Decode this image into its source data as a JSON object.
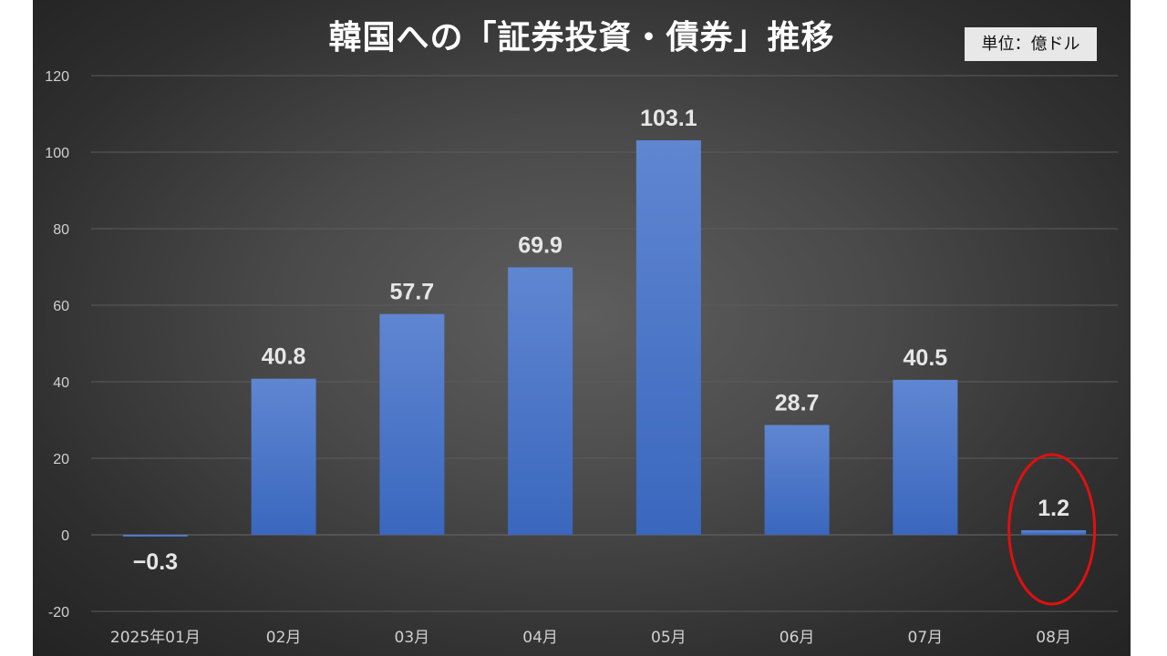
{
  "chart_data": {
    "type": "bar",
    "title": "韓国への「証券投資・債券」推移",
    "unit_label": "単位：億ドル",
    "categories": [
      "2025年01月",
      "02月",
      "03月",
      "04月",
      "05月",
      "06月",
      "07月",
      "08月"
    ],
    "values": [
      -0.3,
      40.8,
      57.7,
      69.9,
      103.1,
      28.7,
      40.5,
      1.2
    ],
    "data_labels": [
      "−0.3",
      "40.8",
      "57.7",
      "69.9",
      "103.1",
      "28.7",
      "40.5",
      "1.2"
    ],
    "ylim": [
      -20,
      120
    ],
    "yticks": [
      -20,
      0,
      20,
      40,
      60,
      80,
      100,
      120
    ],
    "grid": true,
    "highlighted_category": "08月",
    "colors": {
      "bar_top": "#5f86d1",
      "bar_bottom": "#3a67be",
      "grid": "#5c5c5c",
      "tick_text": "#d0d0d0",
      "data_label": "#e6e6e6",
      "highlight_circle": "#e01010"
    }
  }
}
